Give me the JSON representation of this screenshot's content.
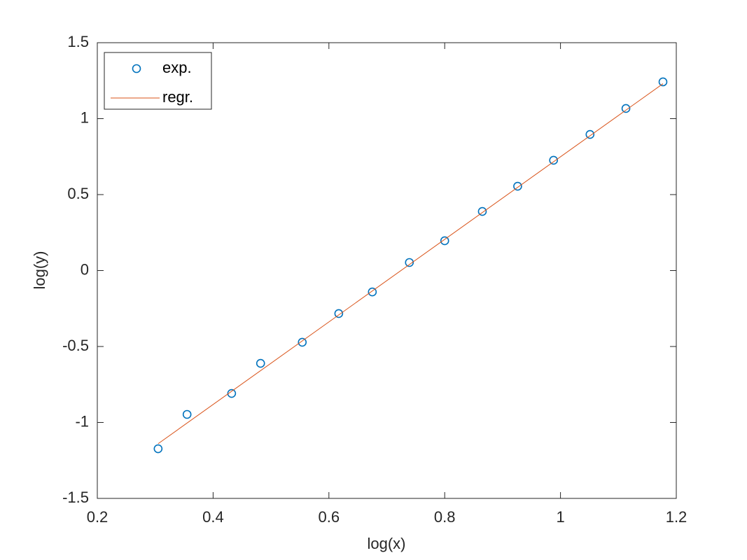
{
  "chart_data": {
    "type": "scatter",
    "xlabel": "log(x)",
    "ylabel": "log(y)",
    "xlim": [
      0.2,
      1.2
    ],
    "xticks": [
      0.2,
      0.4,
      0.6,
      0.8,
      1,
      1.2
    ],
    "ylim": [
      -1.5,
      1.5
    ],
    "yticks": [
      -1.5,
      -1,
      -0.5,
      0,
      0.5,
      1,
      1.5
    ],
    "legend": "upper-left",
    "series": [
      {
        "name": "exp.",
        "color": "#0072BD",
        "style": "markers",
        "x": [
          0.305,
          0.355,
          0.432,
          0.482,
          0.554,
          0.617,
          0.675,
          0.739,
          0.8,
          0.865,
          0.926,
          0.988,
          1.051,
          1.113,
          1.177
        ],
        "values": [
          -1.173,
          -0.947,
          -0.809,
          -0.611,
          -0.472,
          -0.283,
          -0.141,
          0.053,
          0.196,
          0.389,
          0.555,
          0.726,
          0.896,
          1.067,
          1.242
        ]
      },
      {
        "name": "regr.",
        "color": "#D95319",
        "style": "line",
        "x": [
          0.305,
          1.177
        ],
        "values": [
          -1.14,
          1.23
        ]
      }
    ]
  }
}
